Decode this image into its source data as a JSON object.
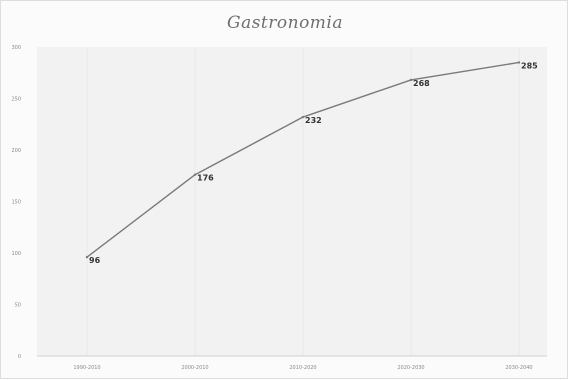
{
  "chart_data": {
    "type": "line",
    "title": "Gastronomia",
    "xlabel": "",
    "ylabel": "",
    "categories": [
      "1990-2010",
      "2000-2010",
      "2010-2020",
      "2020-2030",
      "2030-2040"
    ],
    "series": [
      {
        "values": [
          96,
          176,
          232,
          268,
          285
        ],
        "color": "#7a7a7a"
      }
    ],
    "data_labels": [
      "96",
      "176",
      "232",
      "268",
      "285"
    ],
    "ylim": [
      0,
      300
    ],
    "y_ticks": [
      0,
      50,
      100,
      150,
      200,
      250,
      300
    ],
    "y_tick_labels": [
      "0",
      "50",
      "100",
      "150",
      "200",
      "250",
      "300"
    ],
    "grid": "vertical",
    "legend": "none"
  }
}
